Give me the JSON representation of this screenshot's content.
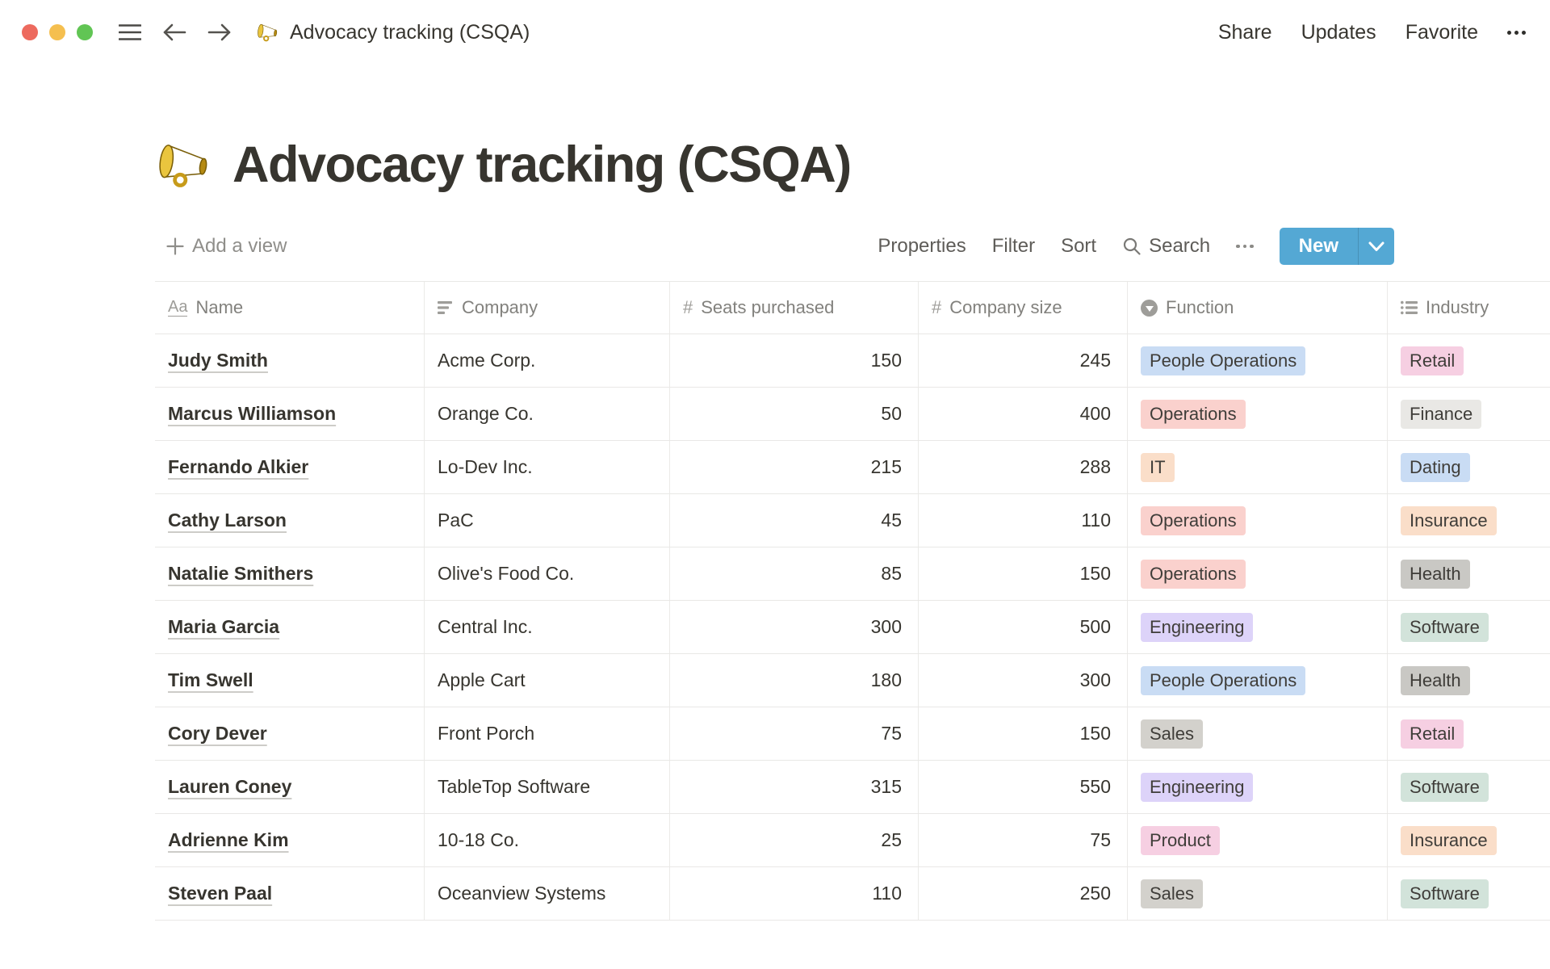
{
  "window": {
    "title": "Advocacy tracking (CSQA)",
    "share": "Share",
    "updates": "Updates",
    "favorite": "Favorite"
  },
  "page": {
    "emoji": "megaphone",
    "title": "Advocacy tracking (CSQA)"
  },
  "toolbar": {
    "add_view": "Add a view",
    "properties": "Properties",
    "filter": "Filter",
    "sort": "Sort",
    "search": "Search",
    "new_button": "New",
    "accent_color": "#54A8D4"
  },
  "tag_colors": {
    "blue": "#C9DCF4",
    "red": "#FAD1CD",
    "orange": "#FADEC9",
    "purple": "#DDD3F9",
    "pink": "#F6CFE2",
    "green": "#D2E3DA",
    "gray": "#D3D1CC",
    "darkgray": "#C9C8C4",
    "lightgray": "#E9E8E5"
  },
  "table": {
    "columns": [
      {
        "label": "Name",
        "icon": "title-icon"
      },
      {
        "label": "Company",
        "icon": "text-icon"
      },
      {
        "label": "Seats purchased",
        "icon": "number-icon"
      },
      {
        "label": "Company size",
        "icon": "number-icon"
      },
      {
        "label": "Function",
        "icon": "select-icon"
      },
      {
        "label": "Industry",
        "icon": "multiselect-icon"
      }
    ],
    "rows": [
      {
        "name": "Judy Smith",
        "company": "Acme Corp.",
        "seats": "150",
        "size": "245",
        "function": {
          "label": "People Operations",
          "color": "blue"
        },
        "industry": {
          "label": "Retail",
          "color": "pink"
        }
      },
      {
        "name": "Marcus Williamson",
        "company": "Orange Co.",
        "seats": "50",
        "size": "400",
        "function": {
          "label": "Operations",
          "color": "red"
        },
        "industry": {
          "label": "Finance",
          "color": "lightgray"
        }
      },
      {
        "name": "Fernando Alkier",
        "company": "Lo-Dev Inc.",
        "seats": "215",
        "size": "288",
        "function": {
          "label": "IT",
          "color": "orange"
        },
        "industry": {
          "label": "Dating",
          "color": "blue"
        }
      },
      {
        "name": "Cathy Larson",
        "company": "PaC",
        "seats": "45",
        "size": "110",
        "function": {
          "label": "Operations",
          "color": "red"
        },
        "industry": {
          "label": "Insurance",
          "color": "orange"
        }
      },
      {
        "name": "Natalie Smithers",
        "company": "Olive's Food Co.",
        "seats": "85",
        "size": "150",
        "function": {
          "label": "Operations",
          "color": "red"
        },
        "industry": {
          "label": "Health",
          "color": "darkgray"
        }
      },
      {
        "name": "Maria Garcia",
        "company": "Central Inc.",
        "seats": "300",
        "size": "500",
        "function": {
          "label": "Engineering",
          "color": "purple"
        },
        "industry": {
          "label": "Software",
          "color": "green"
        }
      },
      {
        "name": "Tim Swell",
        "company": "Apple Cart",
        "seats": "180",
        "size": "300",
        "function": {
          "label": "People Operations",
          "color": "blue"
        },
        "industry": {
          "label": "Health",
          "color": "darkgray"
        }
      },
      {
        "name": "Cory Dever",
        "company": "Front Porch",
        "seats": "75",
        "size": "150",
        "function": {
          "label": "Sales",
          "color": "gray"
        },
        "industry": {
          "label": "Retail",
          "color": "pink"
        }
      },
      {
        "name": "Lauren Coney",
        "company": "TableTop Software",
        "seats": "315",
        "size": "550",
        "function": {
          "label": "Engineering",
          "color": "purple"
        },
        "industry": {
          "label": "Software",
          "color": "green"
        }
      },
      {
        "name": "Adrienne Kim",
        "company": "10-18 Co.",
        "seats": "25",
        "size": "75",
        "function": {
          "label": "Product",
          "color": "pink"
        },
        "industry": {
          "label": "Insurance",
          "color": "orange"
        }
      },
      {
        "name": "Steven Paal",
        "company": "Oceanview Systems",
        "seats": "110",
        "size": "250",
        "function": {
          "label": "Sales",
          "color": "gray"
        },
        "industry": {
          "label": "Software",
          "color": "green"
        }
      }
    ]
  }
}
